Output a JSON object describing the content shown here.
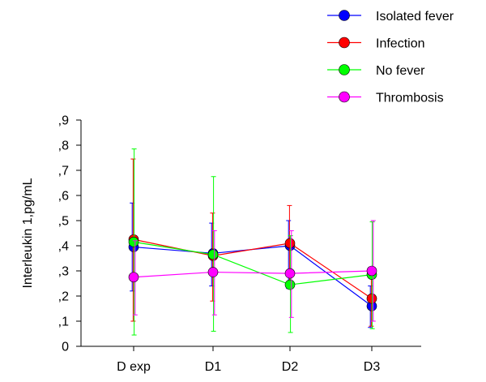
{
  "chart_data": {
    "type": "line",
    "categories": [
      "D exp",
      "D1",
      "D2",
      "D3"
    ],
    "ylabel": "Interleukin  1,pg/mL",
    "xlabel": "",
    "ylim": [
      0,
      0.9
    ],
    "yticks": [
      0,
      0.1,
      0.2,
      0.3,
      0.4,
      0.5,
      0.6,
      0.7,
      0.8,
      0.9
    ],
    "ytick_labels": [
      "0",
      ",1",
      ",2",
      ",3",
      ",4",
      ",5",
      ",6",
      ",7",
      ",8",
      ",9"
    ],
    "legend_position": "top-right",
    "grid": false,
    "error_bars": true,
    "series": [
      {
        "name": "Isolated fever",
        "color": "#0000ff",
        "values": [
          0.395,
          0.37,
          0.4,
          0.16
        ],
        "err_low": [
          0.22,
          0.24,
          0.23,
          0.075
        ],
        "err_high": [
          0.57,
          0.49,
          0.5,
          0.24
        ]
      },
      {
        "name": "Infection",
        "color": "#ff0000",
        "values": [
          0.425,
          0.36,
          0.41,
          0.19
        ],
        "err_low": [
          0.1,
          0.18,
          0.23,
          0.08
        ],
        "err_high": [
          0.745,
          0.53,
          0.56,
          0.29
        ]
      },
      {
        "name": "No fever",
        "color": "#00ff00",
        "values": [
          0.415,
          0.365,
          0.245,
          0.285
        ],
        "err_low": [
          0.045,
          0.06,
          0.055,
          0.07
        ],
        "err_high": [
          0.785,
          0.675,
          0.44,
          0.495
        ]
      },
      {
        "name": "Thrombosis",
        "color": "#ff00ff",
        "values": [
          0.275,
          0.295,
          0.29,
          0.3
        ],
        "err_low": [
          0.125,
          0.125,
          0.115,
          0.1
        ],
        "err_high": [
          0.42,
          0.46,
          0.46,
          0.5
        ]
      }
    ]
  }
}
